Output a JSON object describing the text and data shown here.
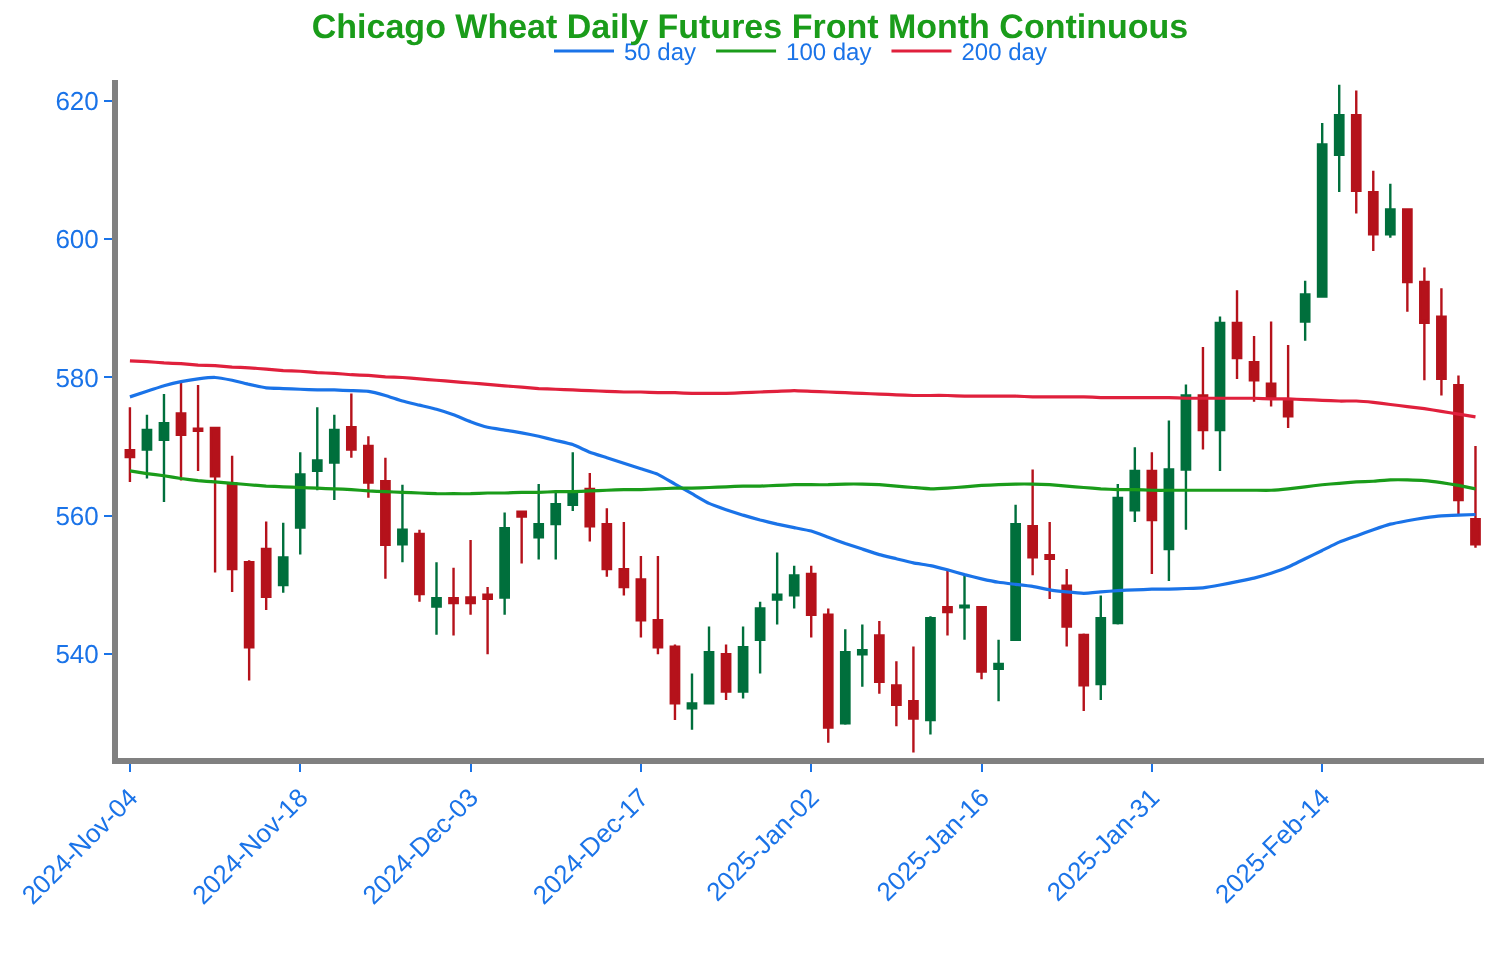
{
  "chart_data": {
    "type": "candlestick",
    "title": "Chicago Wheat Daily Futures Front Month Continuous",
    "categories": [
      "2024-Nov-04",
      null,
      null,
      null,
      null,
      null,
      null,
      null,
      null,
      null,
      "2024-Nov-18",
      null,
      null,
      null,
      null,
      null,
      null,
      null,
      null,
      null,
      "2024-Dec-03",
      null,
      null,
      null,
      null,
      null,
      null,
      null,
      null,
      null,
      "2024-Dec-17",
      null,
      null,
      null,
      null,
      null,
      null,
      null,
      null,
      null,
      "2025-Jan-02",
      null,
      null,
      null,
      null,
      null,
      null,
      null,
      null,
      null,
      "2025-Jan-16",
      null,
      null,
      null,
      null,
      null,
      null,
      null,
      null,
      null,
      "2025-Jan-31",
      null,
      null,
      null,
      null,
      null,
      null,
      null,
      null,
      null,
      "2025-Feb-14",
      null,
      null,
      null,
      null,
      null,
      null,
      null,
      null,
      null
    ],
    "ohlc": [
      [
        569.5,
        575.7,
        564.9,
        568.5
      ],
      [
        569.6,
        574.6,
        565.4,
        572.4
      ],
      [
        571,
        577.6,
        562,
        573.4
      ],
      [
        574.8,
        579.3,
        565.1,
        571.7
      ],
      [
        572.6,
        578.9,
        566.5,
        572.3
      ],
      [
        572.7,
        572.7,
        551.8,
        565.7
      ],
      [
        564.7,
        568.7,
        549,
        552.3
      ],
      [
        553.3,
        553.6,
        536.2,
        541
      ],
      [
        555.2,
        559.2,
        546.4,
        548.3
      ],
      [
        550,
        559,
        548.9,
        554
      ],
      [
        558.3,
        569.2,
        554.4,
        566
      ],
      [
        566.5,
        575.7,
        563.7,
        568
      ],
      [
        567.7,
        574.6,
        562.3,
        572.4
      ],
      [
        572.8,
        577.7,
        568.4,
        569.6
      ],
      [
        570.1,
        571.5,
        562.6,
        564.8
      ],
      [
        565,
        568.4,
        550.9,
        555.8
      ],
      [
        555.9,
        564.5,
        553.3,
        558
      ],
      [
        557.4,
        558,
        547.6,
        548.7
      ],
      [
        546.9,
        553.3,
        542.8,
        548.1
      ],
      [
        548.1,
        552.5,
        542.7,
        547.4
      ],
      [
        548.2,
        556.5,
        545.7,
        547.4
      ],
      [
        548.6,
        549.7,
        540,
        548
      ],
      [
        548.2,
        560.5,
        545.7,
        558.2
      ],
      [
        560.6,
        560.7,
        553.1,
        559.9
      ],
      [
        556.9,
        564.6,
        553.7,
        558.8
      ],
      [
        558.8,
        563.7,
        553.7,
        561.7
      ],
      [
        561.6,
        569.2,
        560.7,
        563.3
      ],
      [
        563.9,
        566.2,
        556.3,
        558.5
      ],
      [
        558.8,
        561.1,
        551.2,
        552.3
      ],
      [
        552.3,
        559.1,
        548.5,
        549.7
      ],
      [
        550.8,
        554.2,
        542.4,
        544.9
      ],
      [
        544.9,
        554.2,
        540,
        541
      ],
      [
        541.1,
        541.4,
        530.5,
        532.9
      ],
      [
        532.2,
        537.2,
        529.1,
        532.9
      ],
      [
        532.9,
        544,
        532.9,
        540.3
      ],
      [
        540,
        541.4,
        533.4,
        534.6
      ],
      [
        534.6,
        544,
        533.6,
        541
      ],
      [
        542.1,
        547.6,
        537.2,
        546.6
      ],
      [
        547.9,
        554.7,
        544.3,
        548.6
      ],
      [
        548.5,
        552.8,
        546.6,
        551.4
      ],
      [
        551.6,
        552.8,
        542.4,
        545.7
      ],
      [
        545.7,
        546.6,
        527.2,
        529.4
      ],
      [
        530,
        543.6,
        529.8,
        540.3
      ],
      [
        540,
        544.3,
        535.3,
        540.6
      ],
      [
        542.7,
        544.8,
        534.3,
        536
      ],
      [
        535.5,
        539,
        529.6,
        532.7
      ],
      [
        533.2,
        541.1,
        525.8,
        530.7
      ],
      [
        530.5,
        545.5,
        528.4,
        545.2
      ],
      [
        546.8,
        552.1,
        542.7,
        546.1
      ],
      [
        546.8,
        551.6,
        542.1,
        547
      ],
      [
        546.8,
        546.8,
        536.4,
        537.5
      ],
      [
        537.9,
        542.1,
        533.2,
        538.6
      ],
      [
        542.1,
        561.6,
        542.1,
        558.8
      ],
      [
        558.5,
        566.7,
        551.4,
        554
      ],
      [
        554.3,
        559.1,
        548,
        553.8
      ],
      [
        549.9,
        552.3,
        541.1,
        544
      ],
      [
        542.8,
        543,
        531.8,
        535.5
      ],
      [
        535.7,
        548.5,
        533.4,
        545.2
      ],
      [
        544.5,
        564.6,
        544.3,
        562.6
      ],
      [
        560.8,
        569.9,
        559.1,
        566.5
      ],
      [
        566.5,
        569.2,
        551.6,
        559.4
      ],
      [
        555.2,
        573.8,
        550.6,
        566.7
      ],
      [
        566.7,
        579,
        558,
        577.4
      ],
      [
        577.4,
        584.4,
        569.6,
        572.4
      ],
      [
        572.4,
        588.8,
        566.5,
        587.9
      ],
      [
        587.9,
        592.6,
        579.8,
        582.8
      ],
      [
        582.2,
        586,
        576.5,
        579.6
      ],
      [
        579.1,
        588.1,
        575.8,
        577
      ],
      [
        576.8,
        584.7,
        572.7,
        574.4
      ],
      [
        588.1,
        594,
        585.3,
        592
      ],
      [
        591.7,
        616.8,
        591.7,
        613.7
      ],
      [
        612.2,
        622.3,
        606.8,
        617.9
      ],
      [
        617.9,
        621.5,
        603.7,
        607
      ],
      [
        606.8,
        609.9,
        598.3,
        600.7
      ],
      [
        600.7,
        608,
        600.2,
        604.3
      ],
      [
        604.3,
        604.3,
        589.5,
        593.8
      ],
      [
        593.8,
        595.9,
        579.6,
        587.9
      ],
      [
        588.8,
        592.9,
        577.4,
        579.8
      ],
      [
        578.9,
        580.3,
        560.1,
        562.3
      ],
      [
        559.5,
        570.1,
        555.4,
        555.9
      ]
    ],
    "colors": [
      "#b5121b",
      "#006f3c",
      "#006f3c",
      "#b5121b",
      "#b5121b",
      "#b5121b",
      "#b5121b",
      "#b5121b",
      "#b5121b",
      "#006f3c",
      "#006f3c",
      "#006f3c",
      "#006f3c",
      "#b5121b",
      "#b5121b",
      "#b5121b",
      "#006f3c",
      "#b5121b",
      "#006f3c",
      "#b5121b",
      "#b5121b",
      "#b5121b",
      "#006f3c",
      "#b5121b",
      "#006f3c",
      "#006f3c",
      "#006f3c",
      "#b5121b",
      "#b5121b",
      "#b5121b",
      "#b5121b",
      "#b5121b",
      "#b5121b",
      "#006f3c",
      "#006f3c",
      "#b5121b",
      "#006f3c",
      "#006f3c",
      "#006f3c",
      "#006f3c",
      "#b5121b",
      "#b5121b",
      "#006f3c",
      "#006f3c",
      "#b5121b",
      "#b5121b",
      "#b5121b",
      "#006f3c",
      "#b5121b",
      "#006f3c",
      "#b5121b",
      "#006f3c",
      "#006f3c",
      "#b5121b",
      "#b5121b",
      "#b5121b",
      "#b5121b",
      "#006f3c",
      "#006f3c",
      "#006f3c",
      "#b5121b",
      "#006f3c",
      "#006f3c",
      "#b5121b",
      "#006f3c",
      "#b5121b",
      "#b5121b",
      "#b5121b",
      "#b5121b",
      "#006f3c",
      "#006f3c",
      "#006f3c",
      "#b5121b",
      "#b5121b",
      "#006f3c",
      "#b5121b",
      "#b5121b",
      "#b5121b",
      "#b5121b",
      "#b5121b"
    ],
    "series": [
      {
        "name": "50 day",
        "type": "line",
        "color": "#1a73e8",
        "values": [
          577.2,
          578.0,
          578.8,
          579.4,
          579.8,
          580.0,
          579.6,
          579.0,
          578.5,
          578.4,
          578.3,
          578.2,
          578.2,
          578.1,
          578.0,
          577.4,
          576.6,
          576.0,
          575.4,
          574.6,
          573.6,
          572.8,
          572.4,
          572.0,
          571.5,
          570.9,
          570.3,
          569.2,
          568.4,
          567.6,
          566.8,
          566.0,
          564.6,
          563.2,
          561.8,
          560.9,
          560.1,
          559.4,
          558.8,
          558.3,
          557.8,
          556.9,
          556.0,
          555.2,
          554.4,
          553.8,
          553.2,
          552.8,
          552.2,
          551.5,
          550.9,
          550.4,
          550.1,
          549.8,
          549.3,
          549.0,
          548.8,
          549.0,
          549.2,
          549.3,
          549.4,
          549.4,
          549.5,
          549.6,
          550.0,
          550.5,
          551.0,
          551.7,
          552.6,
          553.8,
          555.0,
          556.2,
          557.1,
          558.0,
          558.8,
          559.3,
          559.7,
          560.0,
          560.1,
          560.2
        ]
      },
      {
        "name": "100 day",
        "type": "line",
        "color": "#1a9c1a",
        "values": [
          566.5,
          566.1,
          565.8,
          565.4,
          565.1,
          564.9,
          564.7,
          564.5,
          564.3,
          564.2,
          564.1,
          564.0,
          563.9,
          563.8,
          563.6,
          563.5,
          563.4,
          563.3,
          563.2,
          563.2,
          563.2,
          563.3,
          563.3,
          563.4,
          563.4,
          563.5,
          563.5,
          563.6,
          563.7,
          563.8,
          563.8,
          563.9,
          564.0,
          564.0,
          564.1,
          564.2,
          564.3,
          564.3,
          564.4,
          564.5,
          564.5,
          564.5,
          564.6,
          564.6,
          564.5,
          564.3,
          564.1,
          563.9,
          564.0,
          564.2,
          564.4,
          564.5,
          564.6,
          564.6,
          564.5,
          564.3,
          564.1,
          563.9,
          563.8,
          563.8,
          563.7,
          563.7,
          563.7,
          563.7,
          563.7,
          563.7,
          563.7,
          563.7,
          563.9,
          564.2,
          564.5,
          564.7,
          564.9,
          565.0,
          565.2,
          565.2,
          565.1,
          564.8,
          564.4,
          563.9
        ]
      },
      {
        "name": "200 day",
        "type": "line",
        "color": "#e0203c",
        "values": [
          582.4,
          582.3,
          582.1,
          582.0,
          581.8,
          581.7,
          581.5,
          581.4,
          581.2,
          581.0,
          580.9,
          580.7,
          580.6,
          580.4,
          580.3,
          580.1,
          580.0,
          579.8,
          579.6,
          579.4,
          579.2,
          579.0,
          578.8,
          578.6,
          578.4,
          578.3,
          578.2,
          578.1,
          578.0,
          577.9,
          577.9,
          577.8,
          577.8,
          577.7,
          577.7,
          577.7,
          577.8,
          577.9,
          578.0,
          578.1,
          578.0,
          577.9,
          577.8,
          577.7,
          577.6,
          577.5,
          577.4,
          577.4,
          577.4,
          577.3,
          577.3,
          577.3,
          577.3,
          577.2,
          577.2,
          577.2,
          577.2,
          577.1,
          577.1,
          577.1,
          577.1,
          577.1,
          577.0,
          577.0,
          577.0,
          577.0,
          577.0,
          576.9,
          576.9,
          576.8,
          576.7,
          576.6,
          576.6,
          576.4,
          576.1,
          575.8,
          575.5,
          575.1,
          574.7,
          574.3
        ]
      }
    ],
    "ylim": [
      525,
      623
    ],
    "yticks": [
      540,
      560,
      580,
      600,
      620
    ],
    "grid": false,
    "legend": "top",
    "marker": "none",
    "line_style": "solid"
  }
}
